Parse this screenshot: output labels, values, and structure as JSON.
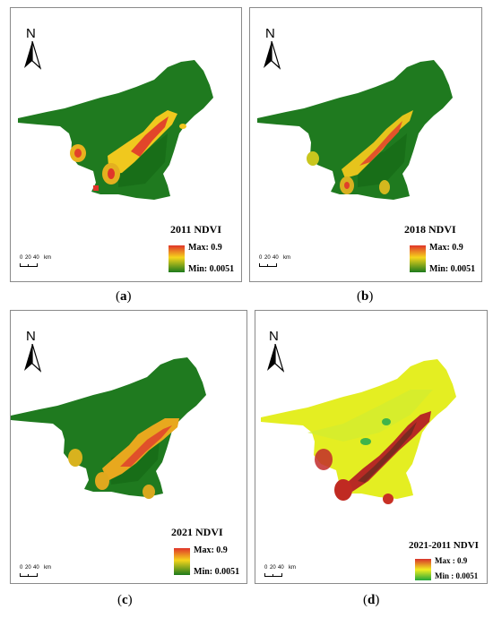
{
  "north_label": "N",
  "panels": [
    {
      "title": "2011 NDVI",
      "legend_max": "Max: 0.9",
      "legend_min": "Min: 0.0051",
      "caption_pre": "(",
      "caption_letter": "a",
      "caption_post": ")"
    },
    {
      "title": "2018 NDVI",
      "legend_max": "Max: 0.9",
      "legend_min": "Min: 0.0051",
      "caption_pre": "(",
      "caption_letter": "b",
      "caption_post": ")"
    },
    {
      "title": "2021 NDVI",
      "legend_max": "Max: 0.9",
      "legend_min": "Min: 0.0051",
      "caption_pre": "(",
      "caption_letter": "c",
      "caption_post": ")"
    },
    {
      "title": "2021-2011 NDVI",
      "legend_max": "Max : 0.9",
      "legend_min": "Min : 0.0051",
      "caption_pre": "(",
      "caption_letter": "d",
      "caption_post": ")"
    }
  ],
  "scale_bar": {
    "t0": "0",
    "t1": "20",
    "t2": "40",
    "unit": "km"
  },
  "colors": {
    "ndvi_high": "#e8402a",
    "ndvi_mid": "#f4d21a",
    "ndvi_low": "#1f7a1f",
    "diff_base": "#e6f020",
    "border": "#8a8a8a"
  }
}
